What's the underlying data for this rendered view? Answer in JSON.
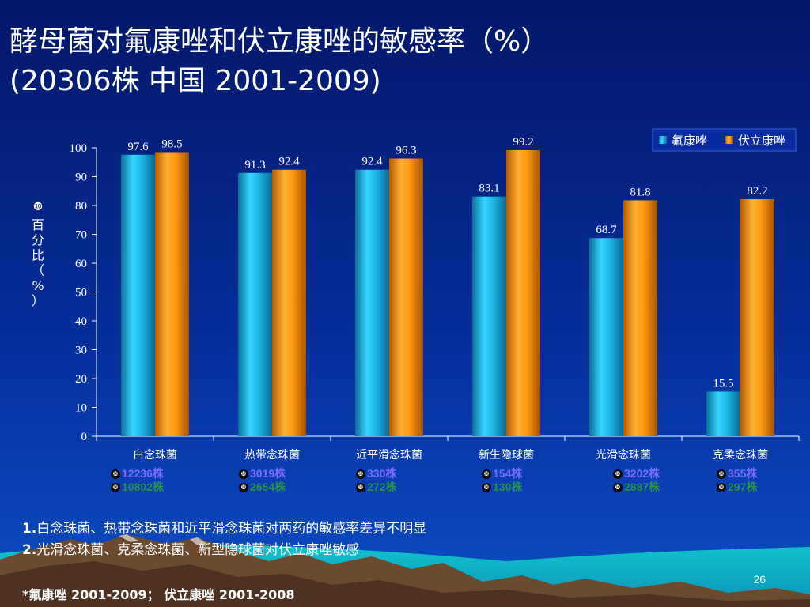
{
  "slide": {
    "title_line1": "酵母菌对氟康唑和伏立康唑的敏感率（%）",
    "title_line2": "(20306株 中国   2001-2009)",
    "page_number": "26"
  },
  "chart_data": {
    "type": "bar",
    "ylabel_marker": "❿",
    "ylabel": "百分比（%）",
    "ylim": [
      0,
      100
    ],
    "yticks": [
      0,
      10,
      20,
      30,
      40,
      50,
      60,
      70,
      80,
      90,
      100
    ],
    "categories": [
      "白念珠菌",
      "热带念珠菌",
      "近平滑念珠菌",
      "新生隐球菌",
      "光滑念珠菌",
      "克柔念珠菌"
    ],
    "series": [
      {
        "name": "氟康唑",
        "values": [
          97.6,
          91.3,
          92.4,
          83.1,
          68.7,
          15.5
        ],
        "color": "#18b6e8"
      },
      {
        "name": "伏立康唑",
        "values": [
          98.5,
          92.4,
          96.3,
          99.2,
          81.8,
          82.2
        ],
        "color": "#ff9a10"
      }
    ],
    "data_labels": [
      "97.6",
      "91.3",
      "92.4",
      "83.1",
      "68.7",
      "15.5",
      "98.5",
      "92.4",
      "96.3",
      "99.2",
      "81.8",
      "82.2"
    ],
    "legend_position": "top-right",
    "grid": false
  },
  "sample_counts": {
    "marker": "❿",
    "unit": "株",
    "fluconazole": [
      "12236",
      "3019",
      "330",
      "154",
      "3202",
      "355"
    ],
    "voriconazole": [
      "10802",
      "2654",
      "272",
      "130",
      "2887",
      "297"
    ]
  },
  "notes": [
    {
      "num": "1.",
      "text": "白念珠菌、热带念珠菌和近平滑念珠菌对两药的敏感率差异不明显"
    },
    {
      "num": "2.",
      "text": "光滑念珠菌、克柔念珠菌、新型隐球菌对伏立康唑敏感"
    }
  ],
  "footnote": {
    "prefix": "*氟康唑 ",
    "fluconazole_years": "2001-2009",
    "separator": "；  伏立康唑 ",
    "voriconazole_years": "2001-2008"
  }
}
